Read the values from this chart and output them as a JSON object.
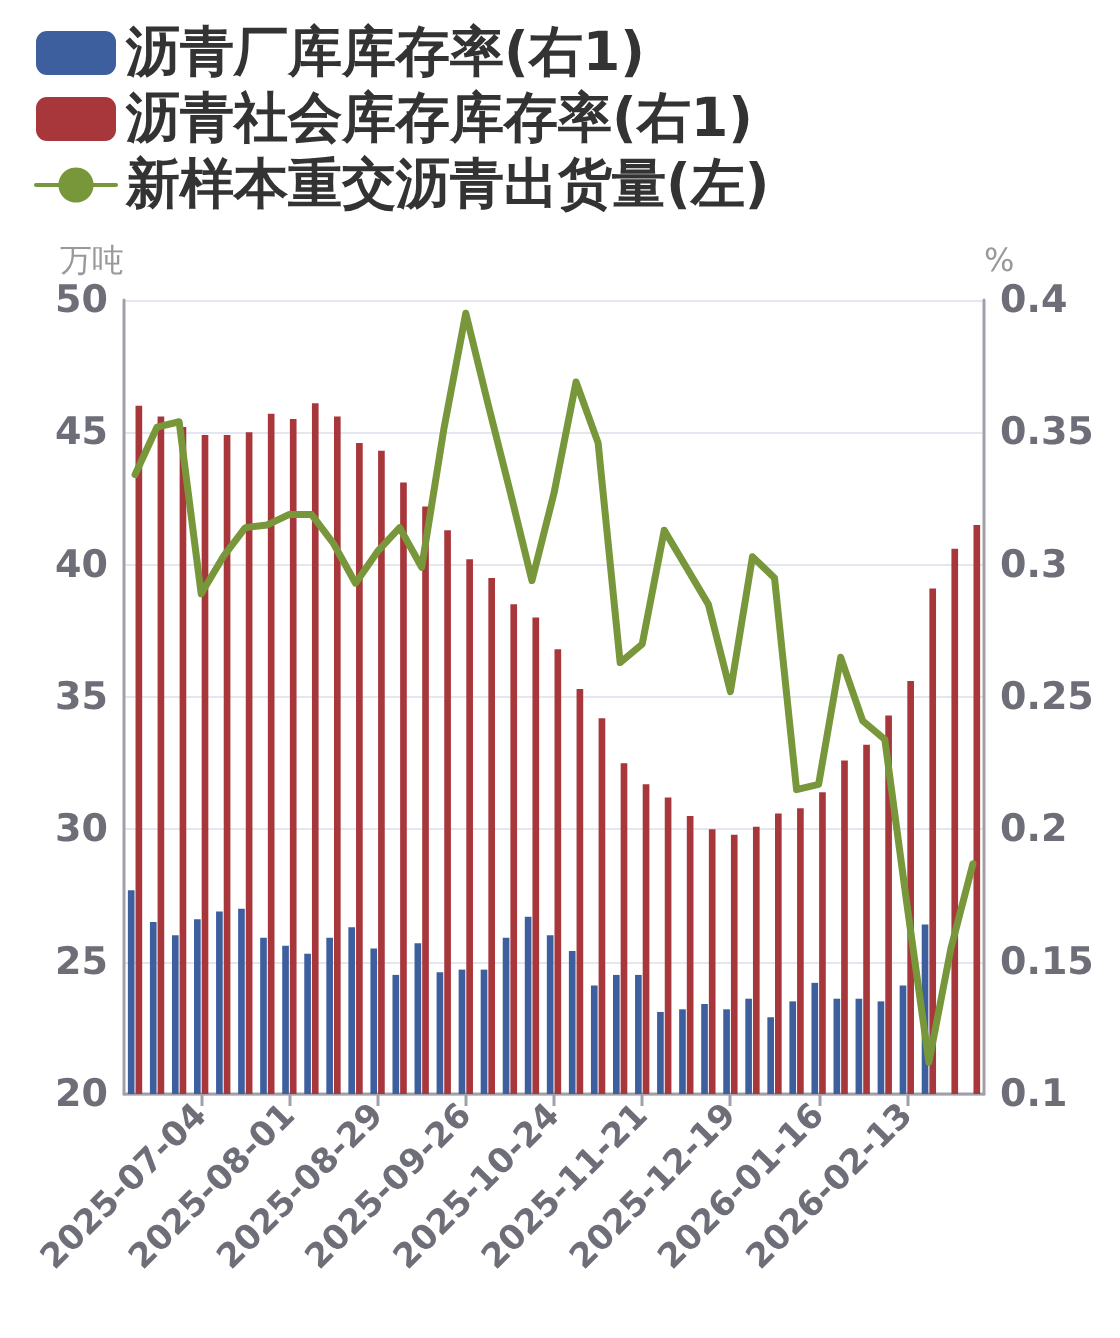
{
  "chart_data": {
    "type": "bar",
    "ylabel": "万吨",
    "y2label": "%",
    "categories": [
      null,
      null,
      null,
      "2025-07-04",
      null,
      null,
      null,
      "2025-08-01",
      null,
      null,
      null,
      "2025-08-29",
      null,
      null,
      null,
      "2025-09-26",
      null,
      null,
      null,
      "2025-10-24",
      null,
      null,
      null,
      "2025-11-21",
      null,
      null,
      null,
      "2025-12-19",
      null,
      null,
      null,
      "2026-01-16",
      null,
      null,
      null,
      "2026-02-13",
      null,
      null,
      null
    ],
    "series": [
      {
        "name": "沥青厂库库存率(右1)",
        "axis": "y2",
        "color": "#3e5f9e",
        "values": [
          0.177,
          0.165,
          0.16,
          0.166,
          0.169,
          0.17,
          0.159,
          0.156,
          0.153,
          0.159,
          0.163,
          0.155,
          0.145,
          0.157,
          0.146,
          0.147,
          0.147,
          0.159,
          0.167,
          0.16,
          0.154,
          0.141,
          0.145,
          0.145,
          0.131,
          0.132,
          0.134,
          0.132,
          0.136,
          0.129,
          0.135,
          0.142,
          0.136,
          0.136,
          0.135,
          0.141,
          0.164,
          null,
          null
        ]
      },
      {
        "name": "沥青社会库存库存率(右1)",
        "axis": "y2",
        "color": "#a8373c",
        "values": [
          0.36,
          0.356,
          0.352,
          0.349,
          0.349,
          0.35,
          0.357,
          0.355,
          0.361,
          0.356,
          0.346,
          0.343,
          0.331,
          0.322,
          0.313,
          0.302,
          0.295,
          0.285,
          0.28,
          0.268,
          0.253,
          0.242,
          0.225,
          0.217,
          0.212,
          0.205,
          0.2,
          0.198,
          0.201,
          0.206,
          0.208,
          0.214,
          0.226,
          0.232,
          0.243,
          0.256,
          0.291,
          0.306,
          0.315
        ]
      },
      {
        "name": "新样本重交沥青出货量(左)",
        "type": "line",
        "color": "#77973a",
        "values": [
          43.4,
          45.2,
          45.4,
          38.9,
          40.3,
          41.4,
          41.5,
          41.9,
          41.9,
          40.8,
          39.3,
          40.5,
          41.4,
          39.9,
          45.1,
          49.5,
          46.1,
          42.8,
          39.4,
          42.7,
          46.9,
          44.6,
          36.3,
          37.0,
          41.3,
          39.9,
          38.5,
          35.2,
          40.3,
          39.5,
          31.5,
          31.7,
          36.5,
          34.1,
          33.4,
          27.2,
          21.2,
          25.5,
          28.7
        ]
      }
    ],
    "ylim": [
      20,
      50
    ],
    "yticks": [
      20,
      25,
      30,
      35,
      40,
      45,
      50
    ],
    "y2lim": [
      0.1,
      0.4
    ],
    "y2ticks": [
      0.1,
      0.15,
      0.2,
      0.25,
      0.3,
      0.35,
      0.4
    ],
    "grid": "y",
    "legend": "top left"
  }
}
